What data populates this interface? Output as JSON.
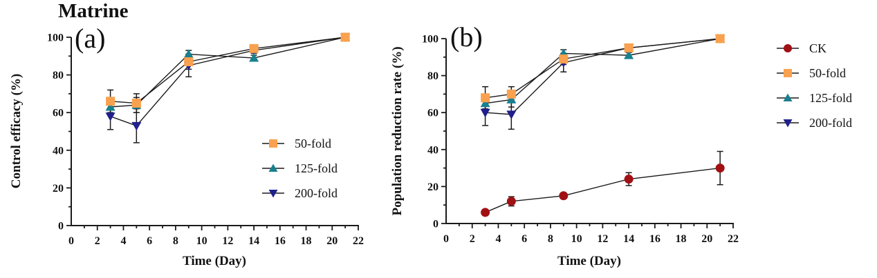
{
  "figure_title": "Matrine",
  "colors": {
    "line": "#1a1a1a",
    "ck": "#A01014",
    "fold50": "#F9A14E",
    "fold125": "#18808E",
    "fold200": "#20208C"
  },
  "chart_data": [
    {
      "type": "line",
      "panel_label": "(a)",
      "ylabel": "Control efficacy (%)",
      "xlabel": "Time (Day)",
      "xlim": [
        0,
        22
      ],
      "ylim": [
        0,
        100
      ],
      "xticks": [
        0,
        2,
        4,
        6,
        8,
        10,
        12,
        14,
        16,
        18,
        20,
        22
      ],
      "yticks": [
        0,
        20,
        40,
        60,
        80,
        100
      ],
      "x_minor_step": 1,
      "y_minor_step": 10,
      "grid": false,
      "legend_position": "inside lower right",
      "x": [
        3,
        5,
        9,
        14,
        21
      ],
      "series": [
        {
          "name": "50-fold",
          "marker": "square",
          "color": "#F9A14E",
          "values": [
            66,
            65,
            87,
            94,
            100
          ],
          "errors": [
            6,
            5,
            4,
            2,
            0
          ]
        },
        {
          "name": "125-fold",
          "marker": "triangle-up",
          "color": "#18808E",
          "values": [
            63,
            64,
            91,
            89,
            100
          ],
          "errors": [
            4,
            4,
            2,
            1.5,
            0
          ]
        },
        {
          "name": "200-fold",
          "marker": "triangle-down",
          "color": "#20208C",
          "values": [
            58,
            53,
            85,
            93,
            100
          ],
          "errors": [
            7,
            9,
            6,
            1.5,
            0
          ]
        }
      ]
    },
    {
      "type": "line",
      "panel_label": "(b)",
      "ylabel": "Population reduction rate (%)",
      "xlabel": "Time (Day)",
      "xlim": [
        0,
        22
      ],
      "ylim": [
        0,
        100
      ],
      "xticks": [
        0,
        2,
        4,
        6,
        8,
        10,
        12,
        14,
        16,
        18,
        20,
        22
      ],
      "yticks": [
        0,
        20,
        40,
        60,
        80,
        100
      ],
      "x_minor_step": 1,
      "y_minor_step": 10,
      "grid": false,
      "legend_position": "outside right",
      "x": [
        3,
        5,
        9,
        14,
        21
      ],
      "series": [
        {
          "name": "CK",
          "marker": "circle",
          "color": "#A01014",
          "values": [
            6,
            12,
            15,
            24,
            30
          ],
          "errors": [
            1,
            2.5,
            1.5,
            3.5,
            9
          ]
        },
        {
          "name": "50-fold",
          "marker": "square",
          "color": "#F9A14E",
          "values": [
            68,
            70,
            89,
            95,
            100
          ],
          "errors": [
            6,
            4,
            3,
            2,
            0
          ]
        },
        {
          "name": "125-fold",
          "marker": "triangle-up",
          "color": "#18808E",
          "values": [
            65,
            67,
            92,
            91,
            100
          ],
          "errors": [
            4,
            4,
            2,
            1.5,
            0
          ]
        },
        {
          "name": "200-fold",
          "marker": "triangle-down",
          "color": "#20208C",
          "values": [
            60,
            59,
            87,
            95,
            100
          ],
          "errors": [
            7,
            8,
            5,
            1.5,
            0
          ]
        }
      ]
    }
  ]
}
